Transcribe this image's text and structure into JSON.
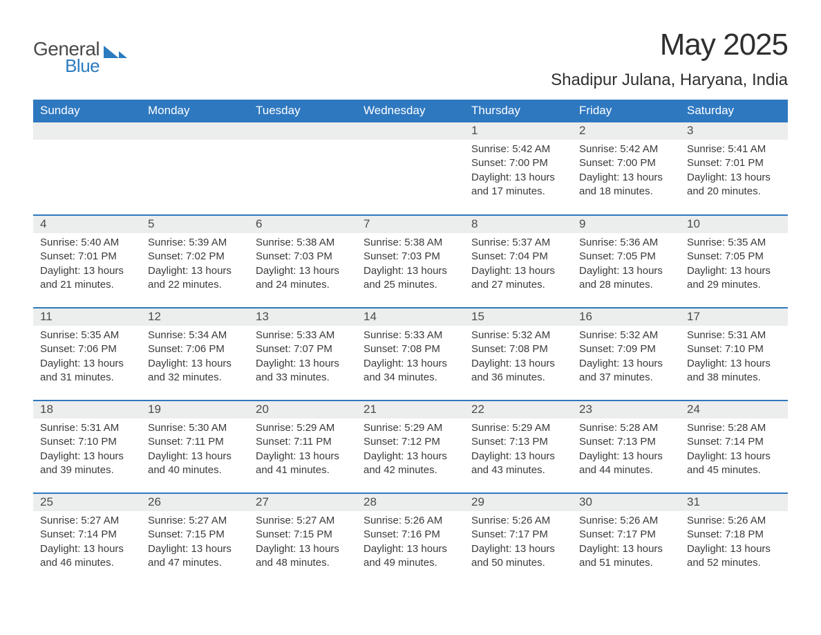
{
  "logo": {
    "line1": "General",
    "line2": "Blue"
  },
  "title": "May 2025",
  "location": "Shadipur Julana, Haryana, India",
  "colors": {
    "header_bg": "#2e78c0",
    "header_text": "#ffffff",
    "daynum_bg": "#eceded",
    "row_border": "#2e78c0",
    "body_text": "#3a3a3a",
    "logo_blue": "#2b7bbf"
  },
  "weekdays": [
    "Sunday",
    "Monday",
    "Tuesday",
    "Wednesday",
    "Thursday",
    "Friday",
    "Saturday"
  ],
  "weeks": [
    [
      null,
      null,
      null,
      null,
      {
        "num": "1",
        "sunrise": "5:42 AM",
        "sunset": "7:00 PM",
        "daylight": "13 hours and 17 minutes."
      },
      {
        "num": "2",
        "sunrise": "5:42 AM",
        "sunset": "7:00 PM",
        "daylight": "13 hours and 18 minutes."
      },
      {
        "num": "3",
        "sunrise": "5:41 AM",
        "sunset": "7:01 PM",
        "daylight": "13 hours and 20 minutes."
      }
    ],
    [
      {
        "num": "4",
        "sunrise": "5:40 AM",
        "sunset": "7:01 PM",
        "daylight": "13 hours and 21 minutes."
      },
      {
        "num": "5",
        "sunrise": "5:39 AM",
        "sunset": "7:02 PM",
        "daylight": "13 hours and 22 minutes."
      },
      {
        "num": "6",
        "sunrise": "5:38 AM",
        "sunset": "7:03 PM",
        "daylight": "13 hours and 24 minutes."
      },
      {
        "num": "7",
        "sunrise": "5:38 AM",
        "sunset": "7:03 PM",
        "daylight": "13 hours and 25 minutes."
      },
      {
        "num": "8",
        "sunrise": "5:37 AM",
        "sunset": "7:04 PM",
        "daylight": "13 hours and 27 minutes."
      },
      {
        "num": "9",
        "sunrise": "5:36 AM",
        "sunset": "7:05 PM",
        "daylight": "13 hours and 28 minutes."
      },
      {
        "num": "10",
        "sunrise": "5:35 AM",
        "sunset": "7:05 PM",
        "daylight": "13 hours and 29 minutes."
      }
    ],
    [
      {
        "num": "11",
        "sunrise": "5:35 AM",
        "sunset": "7:06 PM",
        "daylight": "13 hours and 31 minutes."
      },
      {
        "num": "12",
        "sunrise": "5:34 AM",
        "sunset": "7:06 PM",
        "daylight": "13 hours and 32 minutes."
      },
      {
        "num": "13",
        "sunrise": "5:33 AM",
        "sunset": "7:07 PM",
        "daylight": "13 hours and 33 minutes."
      },
      {
        "num": "14",
        "sunrise": "5:33 AM",
        "sunset": "7:08 PM",
        "daylight": "13 hours and 34 minutes."
      },
      {
        "num": "15",
        "sunrise": "5:32 AM",
        "sunset": "7:08 PM",
        "daylight": "13 hours and 36 minutes."
      },
      {
        "num": "16",
        "sunrise": "5:32 AM",
        "sunset": "7:09 PM",
        "daylight": "13 hours and 37 minutes."
      },
      {
        "num": "17",
        "sunrise": "5:31 AM",
        "sunset": "7:10 PM",
        "daylight": "13 hours and 38 minutes."
      }
    ],
    [
      {
        "num": "18",
        "sunrise": "5:31 AM",
        "sunset": "7:10 PM",
        "daylight": "13 hours and 39 minutes."
      },
      {
        "num": "19",
        "sunrise": "5:30 AM",
        "sunset": "7:11 PM",
        "daylight": "13 hours and 40 minutes."
      },
      {
        "num": "20",
        "sunrise": "5:29 AM",
        "sunset": "7:11 PM",
        "daylight": "13 hours and 41 minutes."
      },
      {
        "num": "21",
        "sunrise": "5:29 AM",
        "sunset": "7:12 PM",
        "daylight": "13 hours and 42 minutes."
      },
      {
        "num": "22",
        "sunrise": "5:29 AM",
        "sunset": "7:13 PM",
        "daylight": "13 hours and 43 minutes."
      },
      {
        "num": "23",
        "sunrise": "5:28 AM",
        "sunset": "7:13 PM",
        "daylight": "13 hours and 44 minutes."
      },
      {
        "num": "24",
        "sunrise": "5:28 AM",
        "sunset": "7:14 PM",
        "daylight": "13 hours and 45 minutes."
      }
    ],
    [
      {
        "num": "25",
        "sunrise": "5:27 AM",
        "sunset": "7:14 PM",
        "daylight": "13 hours and 46 minutes."
      },
      {
        "num": "26",
        "sunrise": "5:27 AM",
        "sunset": "7:15 PM",
        "daylight": "13 hours and 47 minutes."
      },
      {
        "num": "27",
        "sunrise": "5:27 AM",
        "sunset": "7:15 PM",
        "daylight": "13 hours and 48 minutes."
      },
      {
        "num": "28",
        "sunrise": "5:26 AM",
        "sunset": "7:16 PM",
        "daylight": "13 hours and 49 minutes."
      },
      {
        "num": "29",
        "sunrise": "5:26 AM",
        "sunset": "7:17 PM",
        "daylight": "13 hours and 50 minutes."
      },
      {
        "num": "30",
        "sunrise": "5:26 AM",
        "sunset": "7:17 PM",
        "daylight": "13 hours and 51 minutes."
      },
      {
        "num": "31",
        "sunrise": "5:26 AM",
        "sunset": "7:18 PM",
        "daylight": "13 hours and 52 minutes."
      }
    ]
  ],
  "labels": {
    "sunrise": "Sunrise: ",
    "sunset": "Sunset: ",
    "daylight": "Daylight: "
  }
}
